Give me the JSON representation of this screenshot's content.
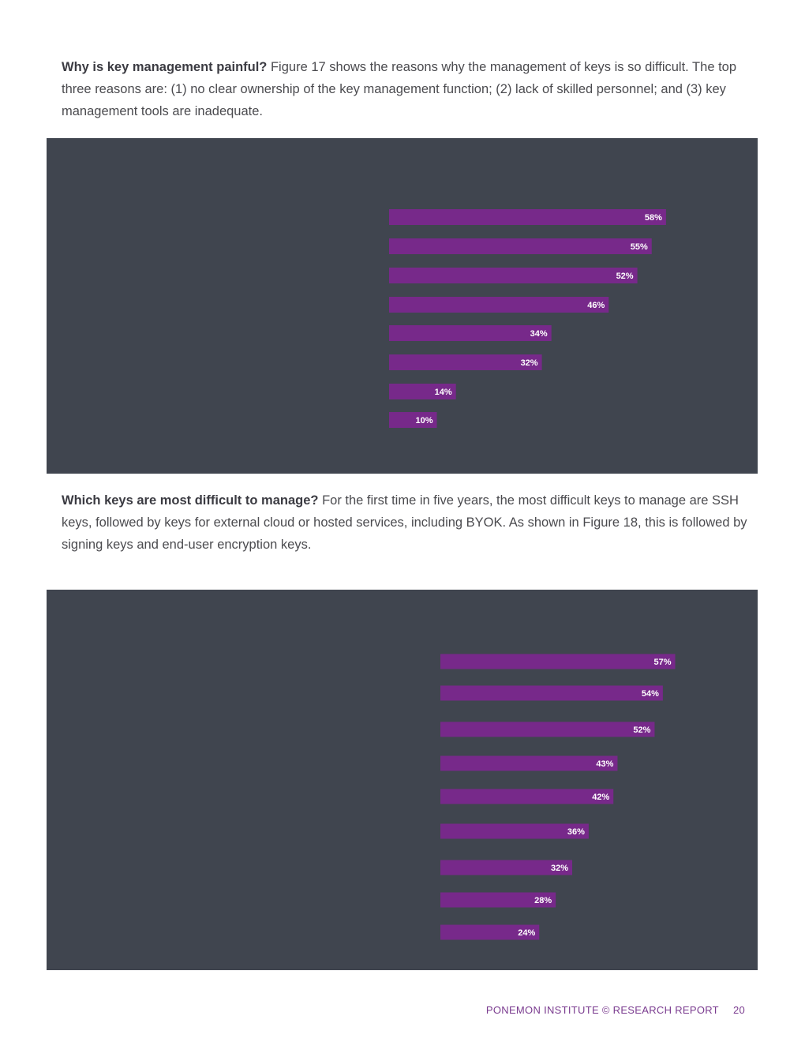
{
  "paragraphs": {
    "p1": {
      "lead": "Why is key management painful?",
      "body": " Figure 17 shows the reasons why the management of keys is so difficult. The top three reasons are: (1) no clear ownership of the key management function; (2) lack of skilled personnel; and (3) key management tools are inadequate."
    },
    "p2": {
      "lead": "Which keys are most difficult to manage?",
      "body": " For the first time in five years, the most difficult keys to manage are SSH keys, followed by keys for external cloud or hosted services, including BYOK. As shown in Figure 18, this is followed by signing keys and end-user encryption keys."
    }
  },
  "colors": {
    "panel_bg": "#40454f",
    "bar": "#77298a",
    "bar_label": "#ffffff",
    "footer": "#7a3b8f"
  },
  "chart_data": [
    {
      "type": "bar",
      "orientation": "horizontal",
      "values": [
        58,
        55,
        52,
        46,
        34,
        32,
        14,
        10
      ],
      "value_labels": [
        "58%",
        "55%",
        "52%",
        "46%",
        "34%",
        "32%",
        "14%",
        "10%"
      ],
      "xlim": [
        0,
        100
      ],
      "grid": false,
      "legend": "none"
    },
    {
      "type": "bar",
      "orientation": "horizontal",
      "values": [
        57,
        54,
        52,
        43,
        42,
        36,
        32,
        28,
        24
      ],
      "value_labels": [
        "57%",
        "54%",
        "52%",
        "43%",
        "42%",
        "36%",
        "32%",
        "28%",
        "24%"
      ],
      "xlim": [
        0,
        100
      ],
      "grid": false,
      "legend": "none"
    }
  ],
  "footer": {
    "label": "PONEMON INSTITUTE © RESEARCH REPORT",
    "page": "20"
  }
}
